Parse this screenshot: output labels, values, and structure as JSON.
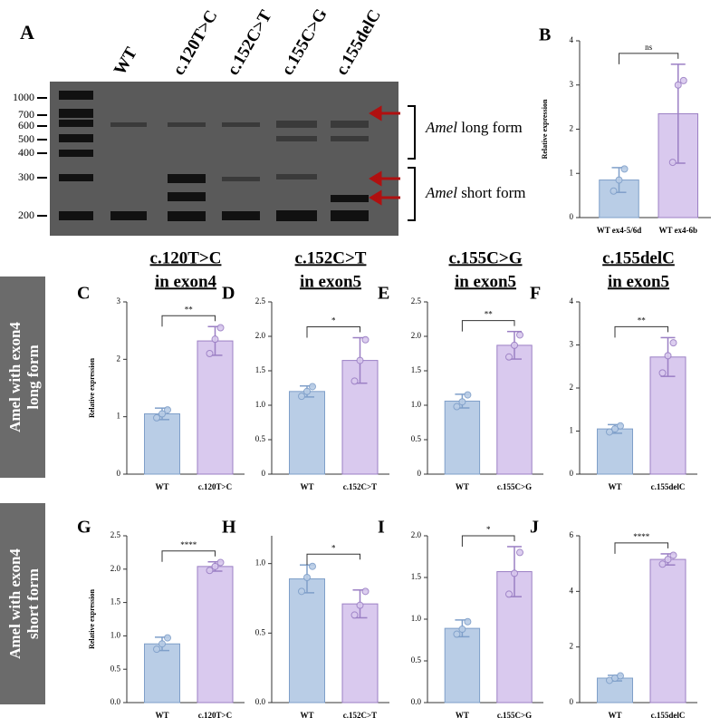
{
  "gel": {
    "label": "A",
    "lanes": [
      "WT",
      "c.120T>C",
      "c.152C>T",
      "c.155C>G",
      "c.155delC"
    ],
    "ladder": [
      "1000",
      "700",
      "600",
      "500",
      "400",
      "300",
      "200"
    ],
    "annotations": [
      {
        "italic": "Amel",
        "text": " long form"
      },
      {
        "italic": "Amel",
        "text": " short form"
      }
    ]
  },
  "row_labels": [
    [
      "Amel with exon4",
      "long form"
    ],
    [
      "Amel with exon4",
      "short form"
    ]
  ],
  "chart_data": [
    {
      "type": "bar",
      "label": "B",
      "categories": [
        "WT ex4-5/6d",
        "WT ex4-6b"
      ],
      "values": [
        0.85,
        2.35
      ],
      "errors": [
        0.28,
        1.12
      ],
      "points": [
        [
          0.6,
          0.85,
          1.1
        ],
        [
          1.25,
          3.0,
          3.1
        ]
      ],
      "significance": "ns",
      "ylabel": "Relative expression",
      "ylim": [
        0,
        4
      ],
      "yticks": [
        0,
        1,
        2,
        3,
        4
      ],
      "colors": [
        "#b9cde6",
        "#d9c9ee"
      ]
    },
    {
      "type": "bar",
      "label": "C",
      "header": [
        "c.120T>C",
        "in exon4"
      ],
      "categories": [
        "WT",
        "c.120T>C"
      ],
      "values": [
        1.05,
        2.32
      ],
      "errors": [
        0.1,
        0.25
      ],
      "points": [
        [
          0.98,
          1.05,
          1.12
        ],
        [
          2.1,
          2.35,
          2.55
        ]
      ],
      "significance": "**",
      "ylabel": "Relative expression",
      "ylim": [
        0,
        3
      ],
      "yticks": [
        0,
        1,
        2,
        3
      ],
      "colors": [
        "#b9cde6",
        "#d9c9ee"
      ]
    },
    {
      "type": "bar",
      "label": "D",
      "header": [
        "c.152C>T",
        "in exon5"
      ],
      "categories": [
        "WT",
        "c.152C>T"
      ],
      "values": [
        1.2,
        1.65
      ],
      "errors": [
        0.08,
        0.33
      ],
      "points": [
        [
          1.13,
          1.2,
          1.27
        ],
        [
          1.35,
          1.65,
          1.95
        ]
      ],
      "significance": "*",
      "ylim": [
        0,
        2.5
      ],
      "yticks": [
        0,
        {
          "value": 0.5,
          "label": "0.5"
        },
        {
          "value": 1,
          "label": "1.0"
        },
        {
          "value": 1.5,
          "label": "1.5"
        },
        {
          "value": 2,
          "label": "2.0"
        },
        {
          "value": 2.5,
          "label": "2.5"
        }
      ],
      "colors": [
        "#b9cde6",
        "#d9c9ee"
      ]
    },
    {
      "type": "bar",
      "label": "E",
      "header": [
        "c.155C>G",
        "in exon5"
      ],
      "categories": [
        "WT",
        "c.155C>G"
      ],
      "values": [
        1.06,
        1.87
      ],
      "errors": [
        0.1,
        0.2
      ],
      "points": [
        [
          0.98,
          1.05,
          1.15
        ],
        [
          1.7,
          1.87,
          2.02
        ]
      ],
      "significance": "**",
      "ylim": [
        0,
        2.5
      ],
      "yticks": [
        0,
        {
          "value": 0.5,
          "label": "0.5"
        },
        {
          "value": 1,
          "label": "1.0"
        },
        {
          "value": 1.5,
          "label": "1.5"
        },
        {
          "value": 2,
          "label": "2.0"
        },
        {
          "value": 2.5,
          "label": "2.5"
        }
      ],
      "colors": [
        "#b9cde6",
        "#d9c9ee"
      ]
    },
    {
      "type": "bar",
      "label": "F",
      "header": [
        "c.155delC",
        "in exon5"
      ],
      "categories": [
        "WT",
        "c.155delC"
      ],
      "values": [
        1.05,
        2.72
      ],
      "errors": [
        0.1,
        0.45
      ],
      "points": [
        [
          0.98,
          1.05,
          1.12
        ],
        [
          2.35,
          2.75,
          3.05
        ]
      ],
      "significance": "**",
      "ylim": [
        0,
        4
      ],
      "yticks": [
        0,
        1,
        2,
        3,
        4
      ],
      "colors": [
        "#b9cde6",
        "#d9c9ee"
      ]
    },
    {
      "type": "bar",
      "label": "G",
      "categories": [
        "WT",
        "c.120T>C"
      ],
      "values": [
        0.88,
        2.04
      ],
      "errors": [
        0.1,
        0.07
      ],
      "points": [
        [
          0.8,
          0.88,
          0.97
        ],
        [
          1.98,
          2.04,
          2.1
        ]
      ],
      "significance": "****",
      "ylabel": "Relative expression",
      "ylim": [
        0,
        2.5
      ],
      "yticks": [
        {
          "value": 0,
          "label": "0.0"
        },
        {
          "value": 0.5,
          "label": "0.5"
        },
        {
          "value": 1,
          "label": "1.0"
        },
        {
          "value": 1.5,
          "label": "1.5"
        },
        {
          "value": 2,
          "label": "2.0"
        },
        {
          "value": 2.5,
          "label": "2.5"
        }
      ],
      "colors": [
        "#b9cde6",
        "#d9c9ee"
      ]
    },
    {
      "type": "bar",
      "label": "H",
      "categories": [
        "WT",
        "c.152C>T"
      ],
      "values": [
        0.89,
        0.71
      ],
      "errors": [
        0.1,
        0.1
      ],
      "points": [
        [
          0.8,
          0.9,
          0.98
        ],
        [
          0.63,
          0.7,
          0.8
        ]
      ],
      "significance": "*",
      "ylim": [
        0,
        1.2
      ],
      "yticks": [
        {
          "value": 0,
          "label": "0.0"
        },
        {
          "value": 0.5,
          "label": "0.5"
        },
        {
          "value": 1,
          "label": "1.0"
        }
      ],
      "colors": [
        "#b9cde6",
        "#d9c9ee"
      ]
    },
    {
      "type": "bar",
      "label": "I",
      "categories": [
        "WT",
        "c.155C>G"
      ],
      "values": [
        0.89,
        1.57
      ],
      "errors": [
        0.1,
        0.3
      ],
      "points": [
        [
          0.82,
          0.88,
          0.97
        ],
        [
          1.3,
          1.55,
          1.8
        ]
      ],
      "significance": "*",
      "ylim": [
        0,
        2
      ],
      "yticks": [
        {
          "value": 0,
          "label": "0.0"
        },
        {
          "value": 0.5,
          "label": "0.5"
        },
        {
          "value": 1,
          "label": "1.0"
        },
        {
          "value": 1.5,
          "label": "1.5"
        },
        {
          "value": 2,
          "label": "2.0"
        }
      ],
      "colors": [
        "#b9cde6",
        "#d9c9ee"
      ]
    },
    {
      "type": "bar",
      "label": "J",
      "categories": [
        "WT",
        "c.155delC"
      ],
      "values": [
        0.88,
        5.15
      ],
      "errors": [
        0.1,
        0.2
      ],
      "points": [
        [
          0.8,
          0.88,
          0.96
        ],
        [
          4.98,
          5.15,
          5.3
        ]
      ],
      "significance": "****",
      "ylim": [
        0,
        6
      ],
      "yticks": [
        0,
        2,
        4,
        6
      ],
      "colors": [
        "#b9cde6",
        "#d9c9ee"
      ]
    }
  ]
}
